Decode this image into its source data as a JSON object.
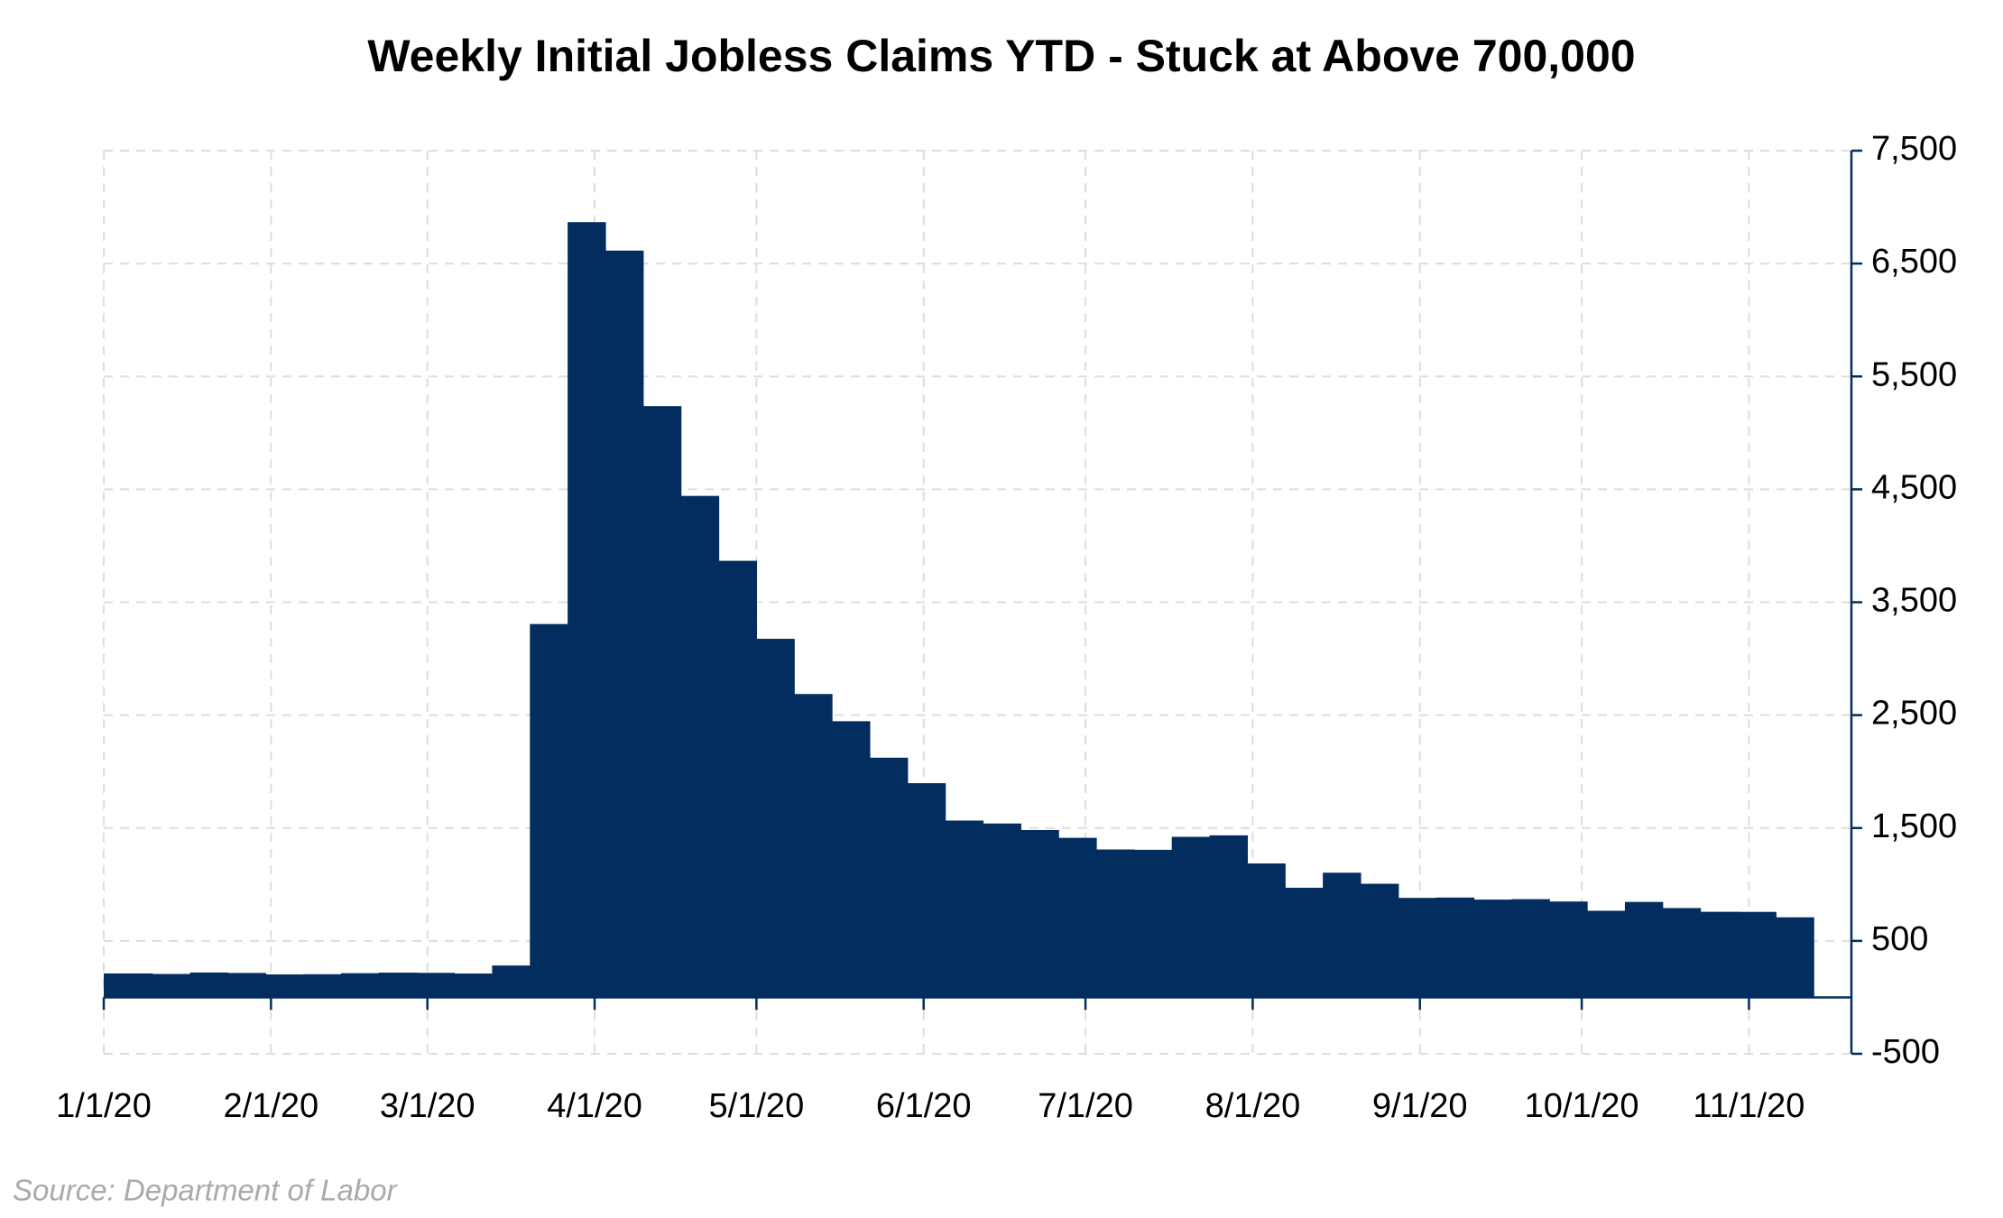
{
  "chart_data": {
    "type": "step-area",
    "title": "Weekly Initial Jobless Claims YTD - Stuck at Above 700,000",
    "source": "Source: Department of Labor",
    "x": [
      "1/4/20",
      "1/11/20",
      "1/18/20",
      "1/25/20",
      "2/1/20",
      "2/8/20",
      "2/15/20",
      "2/22/20",
      "2/29/20",
      "3/7/20",
      "3/14/20",
      "3/21/20",
      "3/28/20",
      "4/4/20",
      "4/11/20",
      "4/18/20",
      "4/25/20",
      "5/2/20",
      "5/9/20",
      "5/16/20",
      "5/23/20",
      "5/30/20",
      "6/6/20",
      "6/13/20",
      "6/20/20",
      "6/27/20",
      "7/4/20",
      "7/11/20",
      "7/18/20",
      "7/25/20",
      "8/1/20",
      "8/8/20",
      "8/15/20",
      "8/22/20",
      "8/29/20",
      "9/5/20",
      "9/12/20",
      "9/19/20",
      "9/26/20",
      "10/3/20",
      "10/10/20",
      "10/17/20",
      "10/24/20",
      "10/31/20",
      "11/7/20"
    ],
    "values": [
      212,
      207,
      220,
      216,
      203,
      205,
      214,
      219,
      217,
      211,
      282,
      3307,
      6867,
      6615,
      5237,
      4442,
      3867,
      3176,
      2687,
      2446,
      2123,
      1897,
      1566,
      1540,
      1482,
      1413,
      1310,
      1307,
      1422,
      1435,
      1186,
      971,
      1104,
      1006,
      881,
      884,
      866,
      870,
      849,
      767,
      845,
      791,
      758,
      757,
      709
    ],
    "color": "#022d5e",
    "xlim": [
      "1/1/20",
      "11/20/20"
    ],
    "xticks": [
      "1/1/20",
      "2/1/20",
      "3/1/20",
      "4/1/20",
      "5/1/20",
      "6/1/20",
      "7/1/20",
      "8/1/20",
      "9/1/20",
      "10/1/20",
      "11/1/20"
    ],
    "ylim": [
      -500,
      7500
    ],
    "yticks": [
      -500,
      500,
      {
        "value": 1500,
        "label": "1,500"
      },
      {
        "value": 2500,
        "label": "2,500"
      },
      {
        "value": 3500,
        "label": "3,500"
      },
      {
        "value": 4500,
        "label": "4,500"
      },
      {
        "value": 5500,
        "label": "5,500"
      },
      {
        "value": 6500,
        "label": "6,500"
      },
      {
        "value": 7500,
        "label": "7,500"
      }
    ],
    "grid": true,
    "y_axis_side": "right"
  }
}
